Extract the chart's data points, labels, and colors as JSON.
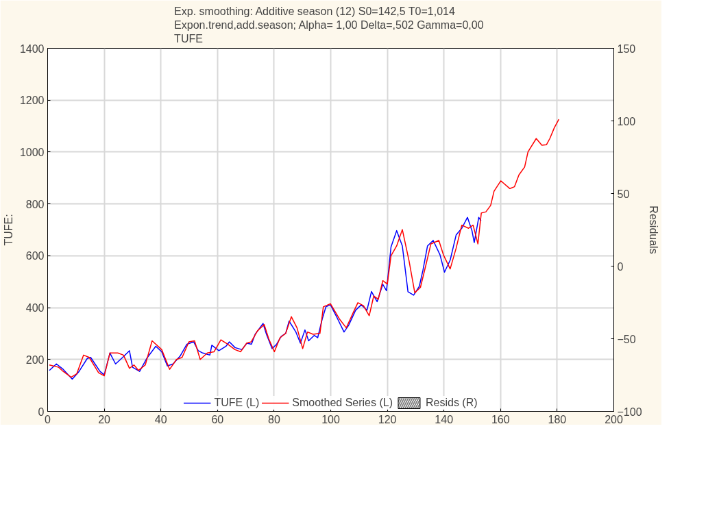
{
  "chart_data": {
    "type": "line",
    "title": "Exp. smoothing: Additive season (12) S0=142,5 T0=1,014\nExpon.trend,add.season; Alpha=  1,00 Delta=,502 Gamma=0,00\nTUFE",
    "ylabel": "TUFE:",
    "y2label": "Residuals",
    "xlim": [
      0,
      200
    ],
    "xticks": [
      0,
      20,
      40,
      60,
      80,
      100,
      120,
      140,
      160,
      180,
      200
    ],
    "ylim": [
      0,
      1400
    ],
    "yticks": [
      0,
      200,
      400,
      600,
      800,
      1000,
      1200,
      1400
    ],
    "y2lim": [
      -100,
      150
    ],
    "y2ticks": [
      -100,
      -50,
      0,
      50,
      100,
      150
    ],
    "grid": true,
    "legend": "bottom",
    "line_style": "solid",
    "marker": "none",
    "series": [
      {
        "name": "TUFE (L)",
        "color": "#0000ff",
        "x": [
          0.6,
          3.1,
          5.5,
          8.7,
          11.1,
          14,
          15.2,
          18.5,
          20,
          22,
          24,
          26.5,
          28.9,
          30,
          32.5,
          35,
          38.2,
          40.3,
          42.3,
          44.3,
          46.8,
          49.2,
          51.6,
          53.2,
          54.8,
          57.3,
          58,
          60.5,
          63,
          64.2,
          66.2,
          68.6,
          70.4,
          72,
          73.3,
          76.1,
          77.3,
          79.3,
          80.9,
          82.5,
          84.1,
          85.3,
          87.7,
          89.3,
          90.9,
          92.2,
          94.2,
          95.4,
          97,
          98.3,
          99.9,
          102.3,
          104.7,
          106.3,
          108.8,
          110.8,
          112.8,
          114.4,
          116.4,
          118.4,
          119.7,
          121.3,
          123.3,
          125.3,
          127.3,
          129.3,
          131.3,
          132.6,
          134.2,
          136.2,
          138.6,
          140.2,
          142.2,
          144.3,
          146.3,
          148.3,
          149.9,
          150.7,
          152.3,
          153.1
        ],
        "values": [
          158,
          183,
          162,
          124,
          154,
          204,
          208,
          154,
          141,
          225,
          183,
          208,
          234,
          170,
          154,
          204,
          251,
          230,
          175,
          183,
          213,
          259,
          268,
          234,
          225,
          217,
          255,
          234,
          251,
          268,
          246,
          238,
          263,
          259,
          297,
          339,
          297,
          242,
          259,
          289,
          301,
          348,
          306,
          263,
          314,
          272,
          293,
          284,
          356,
          403,
          411,
          360,
          306,
          331,
          390,
          411,
          390,
          462,
          423,
          490,
          465,
          634,
          697,
          638,
          461,
          448,
          482,
          545,
          638,
          659,
          604,
          537,
          583,
          680,
          706,
          748,
          697,
          651,
          748,
          735
        ]
      },
      {
        "name": "Smoothed Series (L)",
        "color": "#ff0000",
        "x": [
          0.6,
          3.9,
          5.5,
          8.3,
          10.3,
          12.7,
          14.7,
          18,
          20,
          22,
          24.8,
          26.8,
          28.9,
          30.5,
          32.1,
          34.5,
          36.9,
          40.3,
          43.1,
          45.5,
          47.5,
          49.9,
          51.9,
          53.9,
          56.4,
          58.8,
          61.2,
          63.6,
          66.2,
          68.2,
          70.3,
          71.9,
          74.1,
          76.5,
          78.1,
          80.1,
          82.1,
          84.1,
          86.1,
          88.1,
          90.1,
          91.8,
          93.8,
          96.2,
          97.4,
          99.9,
          103.1,
          105.5,
          108,
          109.6,
          111.6,
          113.6,
          115.2,
          116.8,
          118.4,
          120,
          121.3,
          123.3,
          125.3,
          127.7,
          129.7,
          131.7,
          133.4,
          135.4,
          138.2,
          139.8,
          142.2,
          144.3,
          146.3,
          148.7,
          150.3,
          152,
          153.2,
          154.8,
          156.5,
          157.7,
          160.1,
          163.3,
          164.9,
          166.5,
          168.5,
          169.7,
          172.6,
          174.6,
          176.2,
          177.4,
          179,
          180.6
        ],
        "values": [
          179,
          170,
          154,
          132,
          145,
          217,
          208,
          149,
          137,
          225,
          225,
          217,
          166,
          179,
          158,
          179,
          272,
          238,
          162,
          200,
          208,
          268,
          272,
          200,
          225,
          230,
          276,
          259,
          238,
          230,
          263,
          268,
          310,
          335,
          280,
          230,
          284,
          301,
          365,
          322,
          242,
          306,
          297,
          301,
          403,
          415,
          356,
          322,
          382,
          419,
          407,
          369,
          445,
          432,
          504,
          491,
          600,
          638,
          701,
          579,
          457,
          478,
          554,
          646,
          659,
          604,
          549,
          629,
          718,
          706,
          718,
          646,
          765,
          769,
          794,
          849,
          889,
          859,
          866,
          912,
          942,
          1001,
          1052,
          1026,
          1028,
          1052,
          1094,
          1126
        ]
      },
      {
        "name": "Resids (R)",
        "type": "bar",
        "color": "#000000"
      }
    ]
  }
}
